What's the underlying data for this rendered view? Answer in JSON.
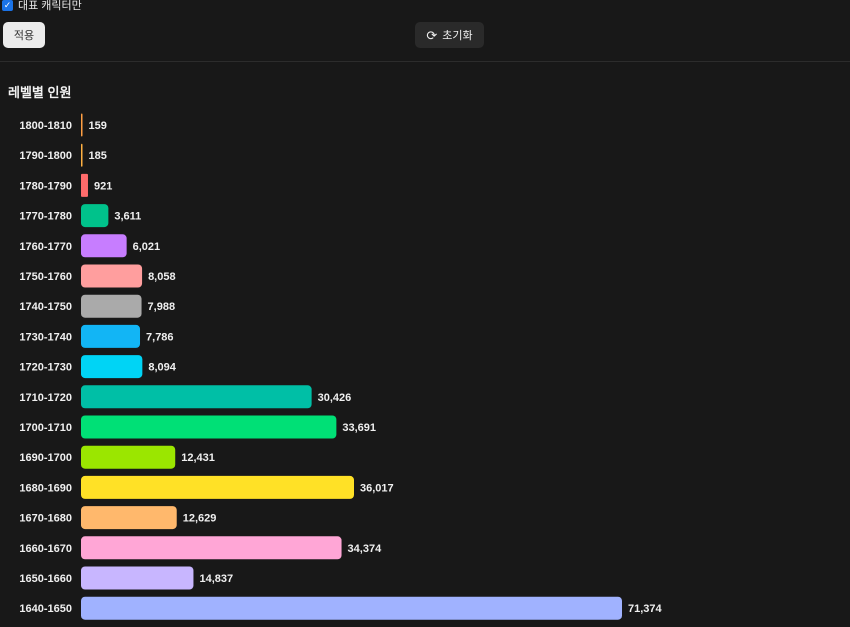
{
  "filter": {
    "checkbox_label": "대표 캐릭터만",
    "checked": true
  },
  "buttons": {
    "apply_label": "적용",
    "reset_label": "초기화",
    "reset_icon": "refresh-icon"
  },
  "chart_data": {
    "type": "bar",
    "orientation": "horizontal",
    "title": "레벨별 인원",
    "categories": [
      "1800-1810",
      "1790-1800",
      "1780-1790",
      "1770-1780",
      "1760-1770",
      "1750-1760",
      "1740-1750",
      "1730-1740",
      "1720-1730",
      "1710-1720",
      "1700-1710",
      "1690-1700",
      "1680-1690",
      "1670-1680",
      "1660-1670",
      "1650-1660",
      "1640-1650"
    ],
    "values": [
      159,
      185,
      921,
      3611,
      6021,
      8058,
      7988,
      7786,
      8094,
      30426,
      33691,
      12431,
      36017,
      12629,
      34374,
      14837,
      71374
    ],
    "value_labels": [
      "159",
      "185",
      "921",
      "3,611",
      "6,021",
      "8,058",
      "7,988",
      "7,786",
      "8,094",
      "30,426",
      "33,691",
      "12,431",
      "36,017",
      "12,629",
      "34,374",
      "14,837",
      "71,374"
    ],
    "colors": [
      "#ff9f43",
      "#ffb142",
      "#ff6b6b",
      "#00c28b",
      "#c77dff",
      "#ff9e9e",
      "#aaaaaa",
      "#12b5f5",
      "#00d4f5",
      "#00bfa6",
      "#00e076",
      "#9be600",
      "#ffe126",
      "#ffb86c",
      "#ffa6d6",
      "#c8b6ff",
      "#a0b2ff"
    ],
    "grid": false,
    "legend": "none"
  }
}
